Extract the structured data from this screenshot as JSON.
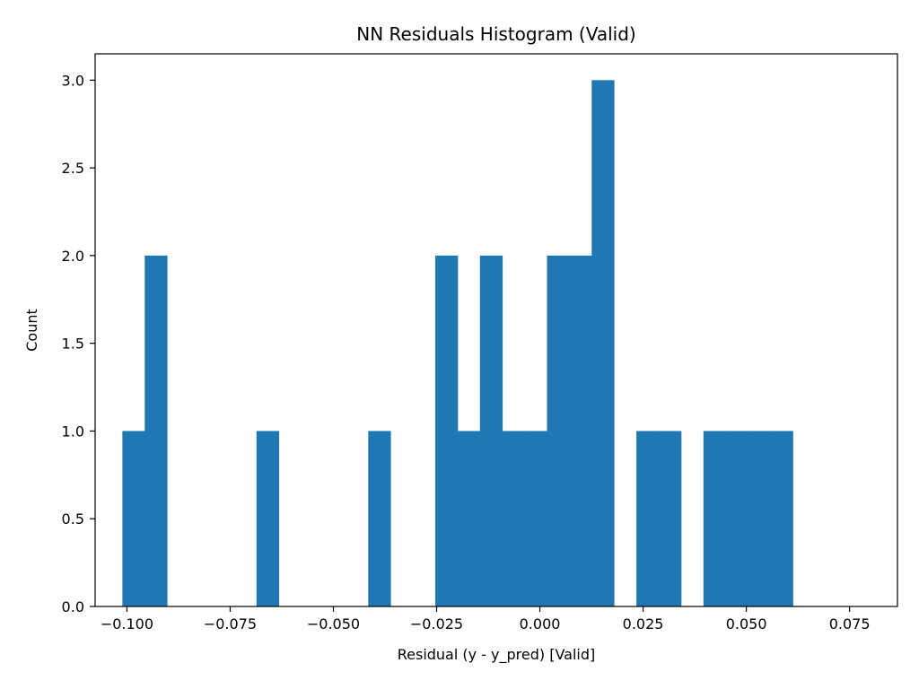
{
  "chart_data": {
    "type": "bar",
    "subtype": "histogram",
    "title": "NN Residuals Histogram (Valid)",
    "xlabel": "Residual (y - y_pred) [Valid]",
    "ylabel": "Count",
    "xlim": [
      -0.1077,
      0.0866
    ],
    "ylim": [
      0,
      3.15
    ],
    "bin_range": [
      -0.1011,
      0.0775
    ],
    "bin_count": 33,
    "counts": [
      1,
      2,
      0,
      0,
      0,
      0,
      1,
      0,
      0,
      0,
      0,
      1,
      0,
      0,
      2,
      1,
      2,
      1,
      1,
      2,
      2,
      3,
      0,
      1,
      1,
      0,
      1,
      1,
      1,
      1,
      0,
      0,
      0
    ],
    "bar_color": "#1f77b4",
    "grid": false,
    "legend": "none",
    "x_ticks": [
      {
        "value": -0.1,
        "label": "−0.100"
      },
      {
        "value": -0.075,
        "label": "−0.075"
      },
      {
        "value": -0.05,
        "label": "−0.050"
      },
      {
        "value": -0.025,
        "label": "−0.025"
      },
      {
        "value": 0.0,
        "label": "0.000"
      },
      {
        "value": 0.025,
        "label": "0.025"
      },
      {
        "value": 0.05,
        "label": "0.050"
      },
      {
        "value": 0.075,
        "label": "0.075"
      }
    ],
    "y_ticks": [
      {
        "value": 0.0,
        "label": "0.0"
      },
      {
        "value": 0.5,
        "label": "0.5"
      },
      {
        "value": 1.0,
        "label": "1.0"
      },
      {
        "value": 1.5,
        "label": "1.5"
      },
      {
        "value": 2.0,
        "label": "2.0"
      },
      {
        "value": 2.5,
        "label": "2.5"
      },
      {
        "value": 3.0,
        "label": "3.0"
      }
    ]
  }
}
